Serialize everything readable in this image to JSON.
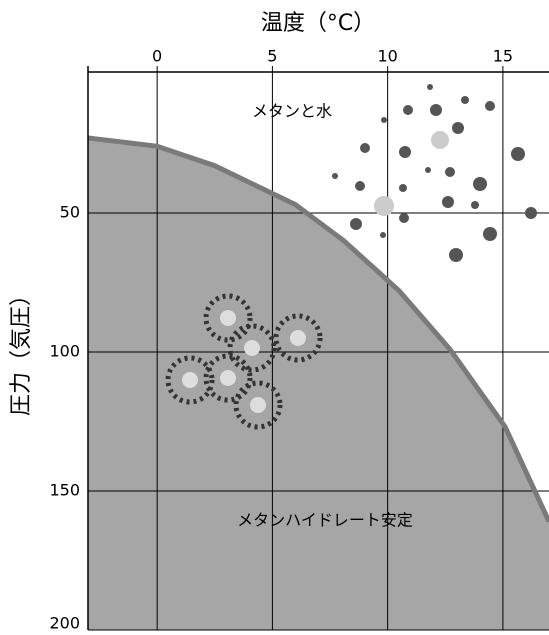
{
  "chart_data": {
    "type": "line",
    "title": "温度（°C）",
    "y_label": "圧力（気圧）",
    "annotations": [
      "メタンと水",
      "メタンハイドレート安定"
    ],
    "x": [
      -3,
      0,
      2.5,
      6,
      8.1,
      10.5,
      12.7,
      15.1,
      17
    ],
    "series": [
      {
        "color": "#7a7a7a",
        "fill": "#a6a6a6",
        "values": [
          23,
          26,
          33,
          47,
          60,
          78,
          99,
          127,
          161
        ]
      }
    ],
    "xlim": [
      -3,
      17
    ],
    "xticks": [
      0,
      5,
      10,
      15
    ],
    "ylim": [
      200,
      0
    ],
    "yticks": [
      50,
      100,
      150,
      200
    ],
    "grid": true
  }
}
